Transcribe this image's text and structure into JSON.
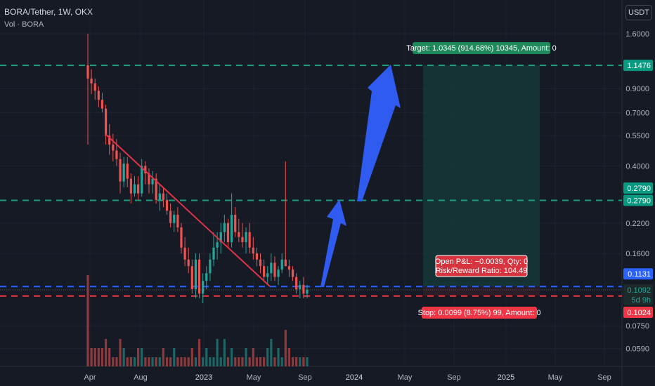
{
  "header": {
    "symbol_line": "BORA/Tether, 1W, OKX",
    "volume_label": "Vol · BORA",
    "currency_button": "USDT"
  },
  "colors": {
    "background": "#161a25",
    "grid": "#1f2330",
    "up": "#26a69a",
    "down": "#ef5350",
    "target_line": "#1e9e7c",
    "entry_line": "#2962ff",
    "stop_line": "#f23645",
    "trendline": "#e0334a",
    "arrow": "#2f5bf0",
    "target_zone": "#153c39"
  },
  "chart_data": {
    "type": "candlestick",
    "title": "BORA/Tether, 1W, OKX",
    "scale": "log",
    "grid": true,
    "y_ticks": [
      "1.6000",
      "0.9000",
      "0.7000",
      "0.5500",
      "0.4000",
      "0.2200",
      "0.1600",
      "0.0750",
      "0.0590"
    ],
    "x_ticks": [
      "Apr",
      "Aug",
      "2023",
      "May",
      "Sep",
      "2024",
      "May",
      "Sep",
      "2025",
      "May",
      "Sep"
    ],
    "price_labels": [
      {
        "value": "1.1476",
        "kind": "target"
      },
      {
        "value": "0.2790",
        "kind": "level"
      },
      {
        "value": "0.2790",
        "kind": "level"
      },
      {
        "value": "0.1131",
        "kind": "entry"
      },
      {
        "value": "0.1092",
        "kind": "last"
      },
      {
        "value": "5d 9h",
        "kind": "countdown"
      },
      {
        "value": "0.1024",
        "kind": "stop"
      }
    ],
    "levels": [
      {
        "name": "target",
        "price": 1.1476
      },
      {
        "name": "resistance",
        "price": 0.279
      },
      {
        "name": "entry",
        "price": 0.1131
      },
      {
        "name": "stop",
        "price": 0.1024
      }
    ],
    "annotations": {
      "target": "Target: 1.0345 (914.68%) 10345, Amount: 0",
      "pnl": "Open P&L: −0.0039, Qty: 0",
      "rr": "Risk/Reward Ratio: 104.49",
      "stop": "Stop: 0.0099 (8.75%) 99, Amount: 0"
    },
    "series": [
      {
        "name": "BORA",
        "type": "candlestick",
        "ohlc": [
          [
            1.15,
            1.6,
            0.5,
            1.0
          ],
          [
            1.0,
            1.1,
            0.85,
            0.95
          ],
          [
            0.95,
            1.0,
            0.8,
            0.88
          ],
          [
            0.88,
            0.92,
            0.74,
            0.8
          ],
          [
            0.8,
            0.86,
            0.7,
            0.73
          ],
          [
            0.73,
            0.76,
            0.5,
            0.55
          ],
          [
            0.55,
            0.62,
            0.45,
            0.5
          ],
          [
            0.5,
            0.56,
            0.42,
            0.47
          ],
          [
            0.47,
            0.53,
            0.4,
            0.43
          ],
          [
            0.43,
            0.46,
            0.3,
            0.34
          ],
          [
            0.34,
            0.44,
            0.32,
            0.41
          ],
          [
            0.41,
            0.44,
            0.32,
            0.35
          ],
          [
            0.35,
            0.37,
            0.27,
            0.3
          ],
          [
            0.3,
            0.36,
            0.29,
            0.33
          ],
          [
            0.33,
            0.36,
            0.28,
            0.3
          ],
          [
            0.3,
            0.43,
            0.29,
            0.4
          ],
          [
            0.4,
            0.42,
            0.33,
            0.37
          ],
          [
            0.37,
            0.39,
            0.3,
            0.33
          ],
          [
            0.33,
            0.38,
            0.3,
            0.35
          ],
          [
            0.35,
            0.37,
            0.27,
            0.28
          ],
          [
            0.28,
            0.33,
            0.25,
            0.3
          ],
          [
            0.3,
            0.32,
            0.26,
            0.28
          ],
          [
            0.28,
            0.3,
            0.24,
            0.25
          ],
          [
            0.25,
            0.27,
            0.21,
            0.22
          ],
          [
            0.22,
            0.25,
            0.2,
            0.24
          ],
          [
            0.24,
            0.26,
            0.2,
            0.21
          ],
          [
            0.21,
            0.22,
            0.16,
            0.17
          ],
          [
            0.17,
            0.19,
            0.14,
            0.15
          ],
          [
            0.15,
            0.17,
            0.13,
            0.14
          ],
          [
            0.14,
            0.15,
            0.105,
            0.11
          ],
          [
            0.11,
            0.16,
            0.1,
            0.15
          ],
          [
            0.15,
            0.16,
            0.1,
            0.105
          ],
          [
            0.105,
            0.13,
            0.095,
            0.12
          ],
          [
            0.12,
            0.14,
            0.11,
            0.13
          ],
          [
            0.13,
            0.16,
            0.12,
            0.15
          ],
          [
            0.15,
            0.2,
            0.14,
            0.17
          ],
          [
            0.17,
            0.2,
            0.15,
            0.18
          ],
          [
            0.18,
            0.22,
            0.16,
            0.2
          ],
          [
            0.2,
            0.24,
            0.18,
            0.22
          ],
          [
            0.22,
            0.23,
            0.17,
            0.18
          ],
          [
            0.18,
            0.3,
            0.17,
            0.24
          ],
          [
            0.24,
            0.26,
            0.19,
            0.2
          ],
          [
            0.2,
            0.23,
            0.18,
            0.19
          ],
          [
            0.19,
            0.22,
            0.17,
            0.18
          ],
          [
            0.18,
            0.21,
            0.16,
            0.2
          ],
          [
            0.2,
            0.22,
            0.16,
            0.17
          ],
          [
            0.17,
            0.19,
            0.15,
            0.16
          ],
          [
            0.16,
            0.17,
            0.14,
            0.15
          ],
          [
            0.15,
            0.16,
            0.13,
            0.14
          ],
          [
            0.14,
            0.15,
            0.12,
            0.125
          ],
          [
            0.125,
            0.14,
            0.115,
            0.13
          ],
          [
            0.13,
            0.16,
            0.12,
            0.145
          ],
          [
            0.145,
            0.155,
            0.12,
            0.125
          ],
          [
            0.125,
            0.14,
            0.115,
            0.135
          ],
          [
            0.135,
            0.16,
            0.13,
            0.15
          ],
          [
            0.15,
            0.42,
            0.14,
            0.14
          ],
          [
            0.14,
            0.15,
            0.125,
            0.135
          ],
          [
            0.135,
            0.14,
            0.12,
            0.125
          ],
          [
            0.125,
            0.13,
            0.105,
            0.11
          ],
          [
            0.11,
            0.12,
            0.1,
            0.115
          ],
          [
            0.115,
            0.125,
            0.1,
            0.105
          ],
          [
            0.105,
            0.115,
            0.1,
            0.1092
          ]
        ]
      }
    ],
    "volume": [
      10,
      2,
      2,
      2,
      2,
      3,
      2,
      1,
      1,
      3,
      2,
      1,
      1,
      1,
      2,
      2,
      1,
      1,
      1,
      1,
      1,
      2,
      1,
      1,
      2,
      1,
      1,
      1,
      1,
      2,
      1,
      3,
      1,
      2,
      1,
      1,
      3,
      1,
      3,
      1,
      2,
      1,
      1,
      1,
      2,
      1,
      2,
      1,
      1,
      1,
      2,
      3,
      1,
      2,
      1,
      4,
      2,
      1,
      1,
      1,
      1,
      1
    ]
  }
}
